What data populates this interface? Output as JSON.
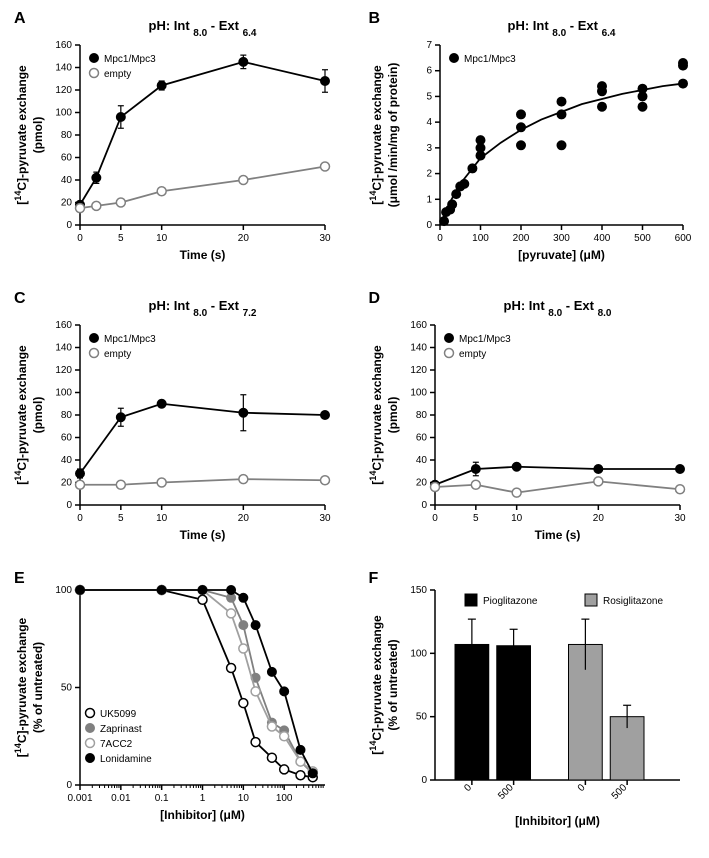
{
  "colors": {
    "black": "#000000",
    "white": "#ffffff",
    "gray": "#808080",
    "lightgray": "#a0a0a0"
  },
  "font": {
    "title": 13,
    "axis_label": 12,
    "tick": 10,
    "legend": 10,
    "panel_letter": 16
  },
  "panelA": {
    "letter": "A",
    "title_pre": "pH: Int ",
    "title_sub1": "8.0",
    "title_mid": " - Ext ",
    "title_sub2": "6.4",
    "xlabel": "Time (s)",
    "ylabel_pre": "[",
    "ylabel_sup": "14",
    "ylabel_post": "C]-pyruvate exchange",
    "ylabel_unit": "(pmol)",
    "xlim": [
      0,
      30
    ],
    "ylim": [
      0,
      160
    ],
    "xticks": [
      0,
      5,
      10,
      20,
      30
    ],
    "yticks": [
      0,
      20,
      40,
      60,
      80,
      100,
      120,
      140,
      160
    ],
    "series": [
      {
        "name": "Mpc1/Mpc3",
        "marker": "circle-filled",
        "color": "#000000",
        "x": [
          0,
          2,
          5,
          10,
          20,
          30
        ],
        "y": [
          18,
          42,
          96,
          124,
          145,
          128
        ],
        "err": [
          3,
          5,
          10,
          4,
          6,
          10
        ]
      },
      {
        "name": "empty",
        "marker": "circle-open",
        "color": "#808080",
        "x": [
          0,
          2,
          5,
          10,
          20,
          30
        ],
        "y": [
          15,
          17,
          20,
          30,
          40,
          52
        ],
        "err": [
          2,
          2,
          2,
          2,
          2,
          2
        ]
      }
    ]
  },
  "panelB": {
    "letter": "B",
    "title_pre": "pH: Int ",
    "title_sub1": "8.0",
    "title_mid": " - Ext ",
    "title_sub2": "6.4",
    "xlabel": "[pyruvate] (μM)",
    "ylabel_pre": "[",
    "ylabel_sup": "14",
    "ylabel_post": "C]-pyruvate exchange",
    "ylabel_unit": "(μmol /min/mg of protein)",
    "xlim": [
      0,
      600
    ],
    "ylim": [
      0,
      7
    ],
    "xticks": [
      0,
      100,
      200,
      300,
      400,
      500,
      600
    ],
    "yticks": [
      0,
      1,
      2,
      3,
      4,
      5,
      6,
      7
    ],
    "series_name": "Mpc1/Mpc3",
    "points": [
      [
        10,
        0.15
      ],
      [
        15,
        0.5
      ],
      [
        25,
        0.6
      ],
      [
        30,
        0.8
      ],
      [
        40,
        1.2
      ],
      [
        50,
        1.5
      ],
      [
        60,
        1.6
      ],
      [
        80,
        2.2
      ],
      [
        100,
        2.7
      ],
      [
        100,
        3.0
      ],
      [
        100,
        3.3
      ],
      [
        200,
        3.1
      ],
      [
        200,
        3.8
      ],
      [
        200,
        4.3
      ],
      [
        300,
        3.1
      ],
      [
        300,
        4.3
      ],
      [
        300,
        4.8
      ],
      [
        400,
        4.6
      ],
      [
        400,
        5.2
      ],
      [
        400,
        5.4
      ],
      [
        500,
        4.6
      ],
      [
        500,
        5.0
      ],
      [
        500,
        5.3
      ],
      [
        600,
        5.5
      ],
      [
        600,
        6.2
      ],
      [
        600,
        6.3
      ]
    ],
    "curve": [
      [
        0,
        0
      ],
      [
        25,
        0.9
      ],
      [
        50,
        1.6
      ],
      [
        75,
        2.1
      ],
      [
        100,
        2.6
      ],
      [
        150,
        3.2
      ],
      [
        200,
        3.7
      ],
      [
        250,
        4.1
      ],
      [
        300,
        4.4
      ],
      [
        350,
        4.7
      ],
      [
        400,
        4.9
      ],
      [
        450,
        5.1
      ],
      [
        500,
        5.25
      ],
      [
        550,
        5.4
      ],
      [
        600,
        5.5
      ]
    ]
  },
  "panelC": {
    "letter": "C",
    "title_pre": "pH: Int ",
    "title_sub1": "8.0",
    "title_mid": " - Ext ",
    "title_sub2": "7.2",
    "xlabel": "Time (s)",
    "ylabel_pre": "[",
    "ylabel_sup": "14",
    "ylabel_post": "C]-pyruvate exchange",
    "ylabel_unit": "(pmol)",
    "xlim": [
      0,
      30
    ],
    "ylim": [
      0,
      160
    ],
    "xticks": [
      0,
      5,
      10,
      20,
      30
    ],
    "yticks": [
      0,
      20,
      40,
      60,
      80,
      100,
      120,
      140,
      160
    ],
    "series": [
      {
        "name": "Mpc1/Mpc3",
        "marker": "circle-filled",
        "color": "#000000",
        "x": [
          0,
          5,
          10,
          20,
          30
        ],
        "y": [
          28,
          78,
          90,
          82,
          80
        ],
        "err": [
          4,
          8,
          3,
          16,
          3
        ]
      },
      {
        "name": "empty",
        "marker": "circle-open",
        "color": "#808080",
        "x": [
          0,
          5,
          10,
          20,
          30
        ],
        "y": [
          18,
          18,
          20,
          23,
          22
        ],
        "err": [
          2,
          2,
          2,
          2,
          2
        ]
      }
    ]
  },
  "panelD": {
    "letter": "D",
    "title_pre": "pH: Int ",
    "title_sub1": "8.0",
    "title_mid": " - Ext ",
    "title_sub2": "8.0",
    "xlabel": "Time (s)",
    "ylabel_pre": "[",
    "ylabel_sup": "14",
    "ylabel_post": "C]-pyruvate exchange",
    "ylabel_unit": "(pmol)",
    "xlim": [
      0,
      30
    ],
    "ylim": [
      0,
      160
    ],
    "xticks": [
      0,
      5,
      10,
      20,
      30
    ],
    "yticks": [
      0,
      20,
      40,
      60,
      80,
      100,
      120,
      140,
      160
    ],
    "series": [
      {
        "name": "Mpc1/Mpc3",
        "marker": "circle-filled",
        "color": "#000000",
        "x": [
          0,
          5,
          10,
          20,
          30
        ],
        "y": [
          18,
          32,
          34,
          32,
          32
        ],
        "err": [
          3,
          6,
          2,
          2,
          2
        ]
      },
      {
        "name": "empty",
        "marker": "circle-open",
        "color": "#808080",
        "x": [
          0,
          5,
          10,
          20,
          30
        ],
        "y": [
          16,
          18,
          11,
          21,
          14
        ],
        "err": [
          2,
          2,
          2,
          2,
          2
        ]
      }
    ]
  },
  "panelE": {
    "letter": "E",
    "xlabel": "[Inhibitor] (μM)",
    "ylabel_pre": "[",
    "ylabel_sup": "14",
    "ylabel_post": "C]-pyruvate exchange",
    "ylabel_unit": "(% of untreated)",
    "xlim_log": [
      -3,
      3
    ],
    "ylim": [
      0,
      100
    ],
    "xticks_labels": [
      "0.001",
      "0.01",
      "0.1",
      "1",
      "10",
      "100"
    ],
    "xticks_log": [
      -3,
      -2,
      -1,
      0,
      1,
      2
    ],
    "yticks": [
      0,
      50,
      100
    ],
    "series": [
      {
        "name": "UK5099",
        "marker": "circle-open",
        "color": "#000000",
        "logx": [
          -3,
          -1,
          0,
          0.7,
          1,
          1.3,
          1.7,
          2,
          2.4,
          2.7
        ],
        "y": [
          100,
          100,
          95,
          60,
          42,
          22,
          14,
          8,
          5,
          4
        ]
      },
      {
        "name": "Zaprinast",
        "marker": "circle-gray",
        "color": "#808080",
        "logx": [
          -3,
          -1,
          0,
          0.7,
          1,
          1.3,
          1.7,
          2,
          2.4,
          2.7
        ],
        "y": [
          100,
          100,
          100,
          96,
          82,
          55,
          32,
          28,
          12,
          6
        ]
      },
      {
        "name": "7ACC2",
        "marker": "circle-open-gray",
        "color": "#a0a0a0",
        "logx": [
          -3,
          -1,
          0,
          0.7,
          1,
          1.3,
          1.7,
          2,
          2.4,
          2.7
        ],
        "y": [
          100,
          100,
          100,
          88,
          70,
          48,
          30,
          25,
          12,
          7
        ]
      },
      {
        "name": "Lonidamine",
        "marker": "circle-filled",
        "color": "#000000",
        "logx": [
          -3,
          -1,
          0,
          0.7,
          1,
          1.3,
          1.7,
          2,
          2.4,
          2.7
        ],
        "y": [
          100,
          100,
          100,
          100,
          96,
          82,
          58,
          48,
          18,
          6
        ]
      }
    ]
  },
  "panelF": {
    "letter": "F",
    "xlabel": "[Inhibitor] (μM)",
    "ylabel_pre": "[",
    "ylabel_sup": "14",
    "ylabel_post": "C]-pyruvate exchange",
    "ylabel_unit": "(% of untreated)",
    "ylim": [
      0,
      150
    ],
    "yticks": [
      0,
      50,
      100,
      150
    ],
    "groups": [
      {
        "name": "Pioglitazone",
        "color": "#000000",
        "bars": [
          {
            "label": "0",
            "value": 107,
            "err": 20
          },
          {
            "label": "500",
            "value": 106,
            "err": 13
          }
        ]
      },
      {
        "name": "Rosiglitazone",
        "color": "#a0a0a0",
        "bars": [
          {
            "label": "0",
            "value": 107,
            "err": 20
          },
          {
            "label": "500",
            "value": 50,
            "err": 9
          }
        ]
      }
    ]
  }
}
